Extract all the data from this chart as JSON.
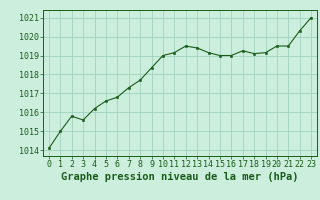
{
  "title": "Graphe pression niveau de la mer (hPa)",
  "x_values": [
    0,
    1,
    2,
    3,
    4,
    5,
    6,
    7,
    8,
    9,
    10,
    11,
    12,
    13,
    14,
    15,
    16,
    17,
    18,
    19,
    20,
    21,
    22,
    23
  ],
  "y_values": [
    1014.1,
    1015.0,
    1015.8,
    1015.6,
    1016.2,
    1016.6,
    1016.8,
    1017.3,
    1017.7,
    1018.35,
    1019.0,
    1019.15,
    1019.5,
    1019.4,
    1019.15,
    1019.0,
    1019.0,
    1019.25,
    1019.1,
    1019.15,
    1019.5,
    1019.5,
    1020.3,
    1021.0
  ],
  "ylim": [
    1013.7,
    1021.4
  ],
  "yticks": [
    1014,
    1015,
    1016,
    1017,
    1018,
    1019,
    1020,
    1021
  ],
  "xlim": [
    -0.5,
    23.5
  ],
  "xticks": [
    0,
    1,
    2,
    3,
    4,
    5,
    6,
    7,
    8,
    9,
    10,
    11,
    12,
    13,
    14,
    15,
    16,
    17,
    18,
    19,
    20,
    21,
    22,
    23
  ],
  "line_color": "#1a5c1a",
  "marker_color": "#1a5c1a",
  "bg_color": "#cceedd",
  "grid_color": "#99ccbb",
  "border_color": "#1a5c1a",
  "title_color": "#1a5c1a",
  "tick_color": "#1a5c1a",
  "title_fontsize": 7.5,
  "tick_fontsize": 6.0
}
